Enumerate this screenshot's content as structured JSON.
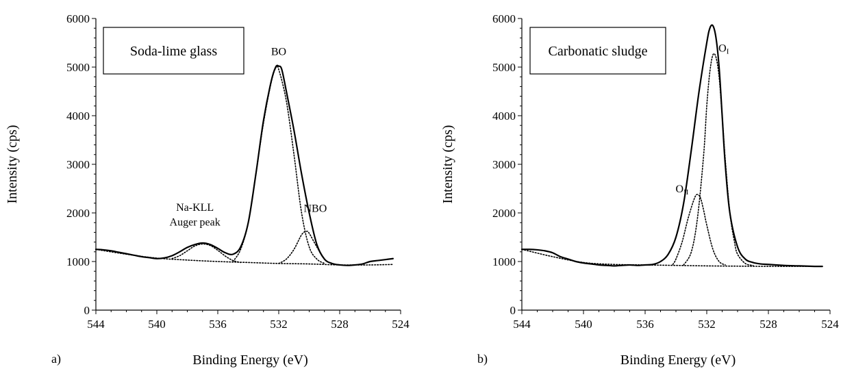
{
  "chart_data": [
    {
      "type": "line",
      "panel_label": "a)",
      "title": "Soda-lime glass",
      "xlabel": "Binding Energy (eV)",
      "ylabel": "Intensity (cps)",
      "xlim": [
        544,
        524
      ],
      "ylim": [
        0,
        6000
      ],
      "x_ticks": [
        544,
        540,
        536,
        532,
        528,
        524
      ],
      "y_ticks": [
        0,
        1000,
        2000,
        3000,
        4000,
        5000,
        6000
      ],
      "grid": false,
      "annotations": [
        {
          "text": "BO",
          "x": 532.0,
          "y": 5250
        },
        {
          "text": "NBO",
          "x": 529.6,
          "y": 2020
        },
        {
          "text": "Na-KLL",
          "x": 537.5,
          "y": 2040
        },
        {
          "text": "Auger peak",
          "x": 537.5,
          "y": 1740
        }
      ],
      "series": [
        {
          "style": "solid",
          "x": [
            544,
            543.5,
            543,
            542.5,
            542,
            541.5,
            541,
            540.5,
            540,
            539.5,
            539,
            538.5,
            538,
            537.5,
            537,
            536.5,
            536,
            535.5,
            535,
            534.5,
            534,
            533.5,
            533,
            532.5,
            532.2,
            532,
            531.8,
            531.5,
            531,
            530.5,
            530,
            529.5,
            529,
            528.5,
            528,
            527.5,
            527,
            526.5,
            526,
            525.5,
            525,
            524.5
          ],
          "y": [
            1250,
            1240,
            1220,
            1190,
            1160,
            1130,
            1100,
            1080,
            1060,
            1075,
            1120,
            1200,
            1290,
            1350,
            1380,
            1350,
            1270,
            1180,
            1150,
            1300,
            1800,
            2800,
            3900,
            4700,
            5000,
            5020,
            4950,
            4500,
            3700,
            2800,
            2000,
            1350,
            1050,
            960,
            930,
            920,
            930,
            950,
            1000,
            1020,
            1040,
            1060
          ]
        },
        {
          "style": "dotted",
          "x": [
            544,
            542,
            540,
            538,
            536,
            534,
            532,
            530,
            528,
            526,
            524.5
          ],
          "y": [
            1250,
            1150,
            1070,
            1030,
            1000,
            980,
            960,
            950,
            930,
            930,
            940
          ]
        },
        {
          "style": "dotted",
          "x": [
            539,
            538.5,
            538,
            537.5,
            537,
            536.5,
            536,
            535.5,
            535,
            534.5
          ],
          "y": [
            1060,
            1120,
            1220,
            1320,
            1360,
            1330,
            1230,
            1110,
            1020,
            980
          ]
        },
        {
          "style": "dotted",
          "x": [
            535,
            534.5,
            534,
            533.5,
            533,
            532.5,
            532.2,
            532,
            531.5,
            531,
            530.5,
            530,
            529.5,
            529
          ],
          "y": [
            1000,
            1250,
            1800,
            2800,
            3850,
            4680,
            4980,
            4950,
            4300,
            3200,
            2000,
            1300,
            1050,
            960
          ]
        },
        {
          "style": "dotted",
          "x": [
            532,
            531.5,
            531,
            530.5,
            530.2,
            530,
            529.5,
            529,
            528.5
          ],
          "y": [
            960,
            1050,
            1250,
            1550,
            1620,
            1580,
            1300,
            1050,
            950
          ]
        }
      ]
    },
    {
      "type": "line",
      "panel_label": "b)",
      "title": "Carbonatic sludge",
      "xlabel": "Binding Energy (eV)",
      "ylabel": "Intensity (cps)",
      "xlim": [
        544,
        524
      ],
      "ylim": [
        0,
        6000
      ],
      "x_ticks": [
        544,
        540,
        536,
        532,
        528,
        524
      ],
      "y_ticks": [
        0,
        1000,
        2000,
        3000,
        4000,
        5000,
        6000
      ],
      "grid": false,
      "annotations": [
        {
          "text": "O",
          "sub": "I",
          "x": 530.9,
          "y": 5320
        },
        {
          "text": "O",
          "sub": "II",
          "x": 533.6,
          "y": 2420
        }
      ],
      "series": [
        {
          "style": "solid",
          "x": [
            544,
            543.5,
            543,
            542.5,
            542,
            541.5,
            541,
            540.5,
            540,
            539.5,
            539,
            538.5,
            538,
            537.5,
            537,
            536.5,
            536,
            535.5,
            535,
            534.5,
            534,
            533.5,
            533,
            532.5,
            532,
            531.8,
            531.6,
            531.4,
            531.2,
            531,
            530.8,
            530.5,
            530,
            529.5,
            529,
            528.5,
            528,
            527,
            526,
            525,
            524.5
          ],
          "y": [
            1250,
            1250,
            1240,
            1220,
            1180,
            1100,
            1050,
            1000,
            970,
            950,
            930,
            920,
            910,
            920,
            930,
            920,
            930,
            940,
            1000,
            1150,
            1500,
            2200,
            3300,
            4500,
            5500,
            5800,
            5850,
            5600,
            5000,
            4000,
            3000,
            2000,
            1300,
            1050,
            980,
            950,
            940,
            920,
            910,
            900,
            900
          ]
        },
        {
          "style": "dotted",
          "x": [
            544,
            542,
            540,
            538,
            536,
            534,
            532,
            530,
            528,
            526,
            524.5
          ],
          "y": [
            1250,
            1100,
            980,
            940,
            930,
            920,
            910,
            905,
            900,
            900,
            900
          ]
        },
        {
          "style": "dotted",
          "x": [
            534.2,
            534,
            533.6,
            533.2,
            532.8,
            532.6,
            532.4,
            532.2,
            532,
            531.6,
            531.2,
            530.8
          ],
          "y": [
            940,
            1050,
            1400,
            1900,
            2300,
            2380,
            2300,
            2050,
            1750,
            1250,
            1000,
            930
          ]
        },
        {
          "style": "dotted",
          "x": [
            533.5,
            533,
            532.6,
            532.2,
            532,
            531.8,
            531.6,
            531.4,
            531.2,
            531,
            530.8,
            530.5,
            530.2,
            530,
            529.5,
            529
          ],
          "y": [
            930,
            1200,
            1900,
            3200,
            4200,
            4900,
            5250,
            5200,
            4800,
            4000,
            3100,
            2000,
            1400,
            1150,
            960,
            920
          ]
        }
      ]
    }
  ]
}
